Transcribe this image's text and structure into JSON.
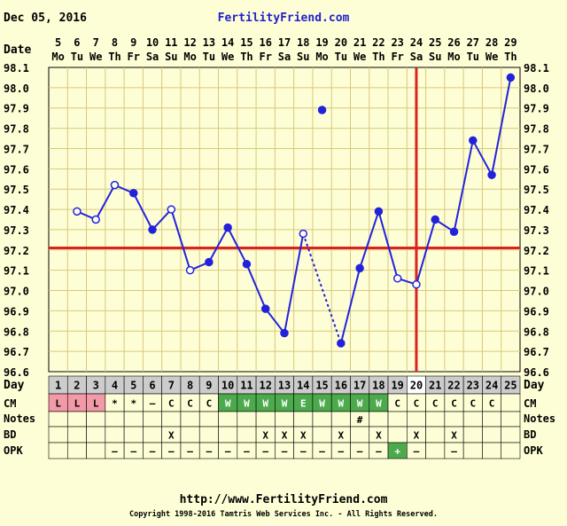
{
  "header": {
    "date": "Dec 05, 2016",
    "site": "FertilityFriend.com"
  },
  "footer": {
    "url": "http://www.FertilityFriend.com",
    "copyright": "Copyright 1998-2016 Tamtris Web Services Inc. - All Rights Reserved."
  },
  "colors": {
    "background": "#fefed6",
    "grid": "#d7c97a",
    "line": "#2222dd",
    "coverline": "#dd2222",
    "pink": "#f29aa8",
    "green": "#4caa4c",
    "dayrow": "#cccccc"
  },
  "labels": {
    "date_row": "Date",
    "day_row": "Day",
    "cm_row": "CM",
    "notes_row": "Notes",
    "bd_row": "BD",
    "opk_row": "OPK"
  },
  "chart_data": {
    "type": "line",
    "title": "",
    "y_axis_label": "",
    "ylim": [
      96.6,
      98.1
    ],
    "y_ticks": [
      "98.1",
      "98.0",
      "97.9",
      "97.8",
      "97.7",
      "97.6",
      "97.5",
      "97.4",
      "97.3",
      "97.2",
      "97.1",
      "97.0",
      "96.9",
      "96.8",
      "96.7",
      "96.6"
    ],
    "dates": [
      "5",
      "6",
      "7",
      "8",
      "9",
      "10",
      "11",
      "12",
      "13",
      "14",
      "15",
      "16",
      "17",
      "18",
      "19",
      "20",
      "21",
      "22",
      "23",
      "24",
      "25",
      "26",
      "27",
      "28",
      "29"
    ],
    "weekdays": [
      "Mo",
      "Tu",
      "We",
      "Th",
      "Fr",
      "Sa",
      "Su",
      "Mo",
      "Tu",
      "We",
      "Th",
      "Fr",
      "Sa",
      "Su",
      "Mo",
      "Tu",
      "We",
      "Th",
      "Fr",
      "Sa",
      "Su",
      "Mo",
      "Tu",
      "We",
      "Th"
    ],
    "cycle_days": [
      "1",
      "2",
      "3",
      "4",
      "5",
      "6",
      "7",
      "8",
      "9",
      "10",
      "11",
      "12",
      "13",
      "14",
      "15",
      "16",
      "17",
      "18",
      "19",
      "20",
      "21",
      "22",
      "23",
      "24",
      "25"
    ],
    "temps": [
      null,
      97.39,
      97.35,
      97.52,
      97.48,
      97.3,
      97.4,
      97.1,
      97.14,
      97.31,
      97.13,
      96.91,
      96.79,
      97.28,
      97.89,
      96.74,
      97.11,
      97.39,
      97.06,
      97.03,
      97.35,
      97.29,
      97.74,
      97.57,
      98.05
    ],
    "hollow_points": [
      1,
      2,
      3,
      6,
      7,
      13,
      18,
      19
    ],
    "excluded_points": [
      14
    ],
    "dotted_segment": [
      13,
      15
    ],
    "coverline": 97.21,
    "ovulation_day": "20",
    "ovulation_index": 19,
    "cm": [
      "L",
      "L",
      "L",
      "*",
      "*",
      "–",
      "C",
      "C",
      "C",
      "W",
      "W",
      "W",
      "W",
      "E",
      "W",
      "W",
      "W",
      "W",
      "C",
      "C",
      "C",
      "C",
      "C",
      "C",
      ""
    ],
    "cm_style": [
      "pink",
      "pink",
      "pink",
      "",
      "",
      "",
      "",
      "",
      "",
      "green",
      "green",
      "green",
      "green",
      "green",
      "green",
      "green",
      "green",
      "green",
      "",
      "",
      "",
      "",
      "",
      "",
      ""
    ],
    "notes": [
      "",
      "",
      "",
      "",
      "",
      "",
      "",
      "",
      "",
      "",
      "",
      "",
      "",
      "",
      "",
      "",
      "#",
      "",
      "",
      "",
      "",
      "",
      "",
      "",
      ""
    ],
    "bd": [
      "",
      "",
      "",
      "",
      "",
      "",
      "X",
      "",
      "",
      "",
      "",
      "X",
      "X",
      "X",
      "",
      "X",
      "",
      "X",
      "",
      "X",
      "",
      "X",
      "",
      "",
      ""
    ],
    "opk": [
      "",
      "",
      "",
      "–",
      "–",
      "–",
      "–",
      "–",
      "–",
      "–",
      "–",
      "–",
      "–",
      "–",
      "–",
      "–",
      "–",
      "–",
      "+",
      "–",
      "",
      "–",
      "",
      "",
      ""
    ],
    "opk_style": [
      "",
      "",
      "",
      "",
      "",
      "",
      "",
      "",
      "",
      "",
      "",
      "",
      "",
      "",
      "",
      "",
      "",
      "",
      "green",
      "",
      "",
      "",
      "",
      "",
      ""
    ]
  }
}
